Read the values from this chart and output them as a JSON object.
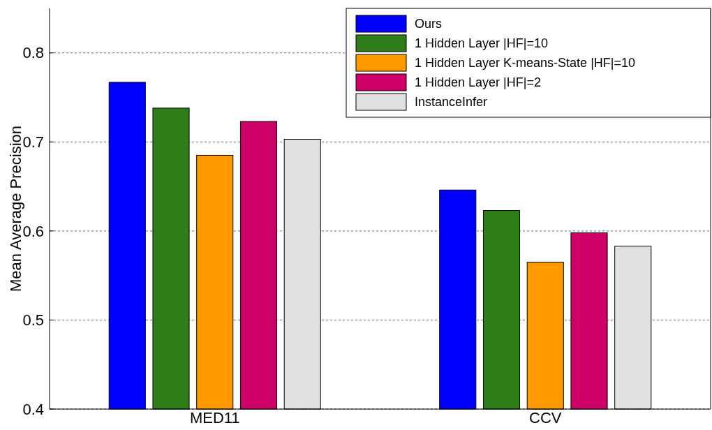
{
  "chart_data": {
    "type": "bar",
    "ylabel": "Mean Average Precision",
    "categories": [
      "MED11",
      "CCV"
    ],
    "series": [
      {
        "name": "Ours",
        "color": "#0000ff",
        "values": [
          0.767,
          0.646
        ]
      },
      {
        "name": "1 Hidden Layer |HF|=10",
        "color": "#2e7d18",
        "values": [
          0.738,
          0.623
        ]
      },
      {
        "name": "1 Hidden Layer K-means-State |HF|=10",
        "color": "#ff9900",
        "values": [
          0.685,
          0.565
        ]
      },
      {
        "name": "1 Hidden Layer |HF|=2",
        "color": "#cc0066",
        "values": [
          0.723,
          0.598
        ]
      },
      {
        "name": "InstanceInfer",
        "color": "#e0e0e0",
        "values": [
          0.703,
          0.583
        ]
      }
    ],
    "ylim": [
      0.4,
      0.85
    ],
    "yticks": [
      0.4,
      0.5,
      0.6,
      0.7,
      0.8
    ],
    "grid": "y",
    "legend": "top right"
  }
}
